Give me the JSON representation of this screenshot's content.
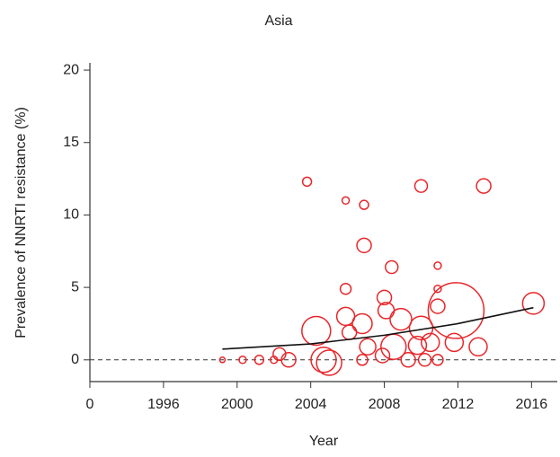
{
  "chart_data": {
    "type": "bubble",
    "title": "Asia",
    "xlabel": "Year",
    "ylabel": "Prevalence of NNRTI resistance (%)",
    "color": "#e8262a",
    "x": [
      1999.2,
      2000.3,
      2001.2,
      2002,
      2002.3,
      2002.8,
      2003.8,
      2004.3,
      2004.7,
      2005.9,
      2005.9,
      2005.9,
      2006.1,
      2006.9,
      2006.9,
      2006.8,
      2007.1,
      2006.8,
      2008.4,
      2008,
      2008.1,
      2008.5,
      2008.9,
      2009.3,
      2010,
      2010,
      2010.2,
      2010.9,
      2010.9,
      2010.9,
      2010.9,
      2011.9,
      2011.8,
      2013.1,
      2013.4,
      2016.1,
      2010.5,
      2009.8,
      2007.9,
      2005
    ],
    "values": [
      0,
      0,
      0,
      0,
      0.4,
      0,
      12.3,
      2.0,
      0,
      4.9,
      11.0,
      3.0,
      1.9,
      10.7,
      7.9,
      2.5,
      0.9,
      0,
      6.4,
      4.3,
      3.4,
      0.9,
      2.8,
      0,
      12.0,
      2.2,
      0,
      6.5,
      4.9,
      3.7,
      0,
      3.4,
      1.2,
      0.9,
      12.0,
      3.9,
      1.2,
      1.0,
      0.3,
      -0.2
    ],
    "sizes": [
      3,
      4,
      5,
      4,
      7,
      8,
      5,
      16,
      14,
      6,
      4,
      10,
      8,
      5,
      8,
      11,
      9,
      6,
      7,
      8,
      9,
      14,
      12,
      8,
      7,
      13,
      7,
      4,
      4,
      8,
      6,
      31,
      10,
      10,
      8,
      12,
      10,
      10,
      8,
      14
    ],
    "trend": {
      "x": [
        1999.2,
        2004,
        2008,
        2012,
        2016.1
      ],
      "values": [
        0.74,
        1.1,
        1.7,
        2.5,
        3.6
      ]
    },
    "hline": 0,
    "xlim": [
      1992,
      2017.4
    ],
    "ylim": [
      -1.5,
      20.5
    ],
    "xticks": [
      {
        "value": 1992,
        "label": "0"
      },
      1996,
      2000,
      2004,
      2008,
      2012,
      2016
    ],
    "yticks": [
      0,
      5,
      10,
      15,
      20
    ]
  }
}
